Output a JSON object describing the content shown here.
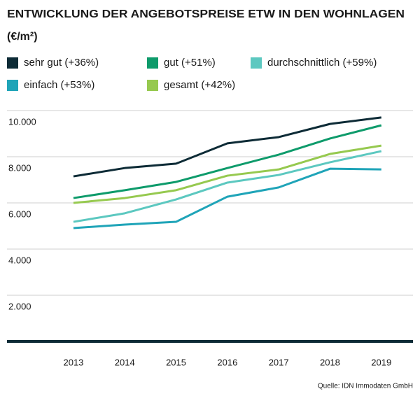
{
  "chart_data": {
    "type": "line",
    "title": "ENTWICKLUNG DER ANGEBOTSPREISE ETW IN DEN WOHNLAGEN",
    "subtitle": "(€/m²)",
    "source": "Quelle: IDN Immodaten GmbH",
    "categories": [
      "2013",
      "2014",
      "2015",
      "2016",
      "2017",
      "2018",
      "2019"
    ],
    "series": [
      {
        "name": "sehr gut (+36%)",
        "color": "#0d2b36",
        "values": [
          7150,
          7510,
          7700,
          8580,
          8850,
          9420,
          9700
        ]
      },
      {
        "name": "gut (+51%)",
        "color": "#0e9b6b",
        "values": [
          6210,
          6550,
          6910,
          7510,
          8090,
          8790,
          9360
        ]
      },
      {
        "name": "durchschnittlich (+59%)",
        "color": "#5cc8c0",
        "values": [
          5180,
          5550,
          6150,
          6880,
          7210,
          7760,
          8240
        ]
      },
      {
        "name": "einfach (+53%)",
        "color": "#1fa4b8",
        "values": [
          4910,
          5060,
          5180,
          6270,
          6670,
          7480,
          7450
        ]
      },
      {
        "name": "gesamt (+42%)",
        "color": "#96c94f",
        "values": [
          6000,
          6210,
          6550,
          7180,
          7450,
          8120,
          8480
        ]
      }
    ],
    "ylim": [
      0,
      10000
    ],
    "yticks": [
      {
        "value": 2000,
        "label": "2.000"
      },
      {
        "value": 4000,
        "label": "4.000"
      },
      {
        "value": 6000,
        "label": "6.000"
      },
      {
        "value": 8000,
        "label": "8.000"
      },
      {
        "value": 10000,
        "label": "10.000"
      }
    ],
    "grid": true
  }
}
